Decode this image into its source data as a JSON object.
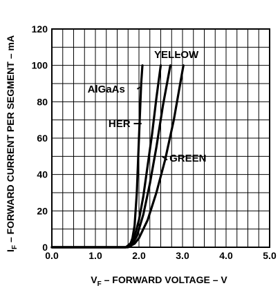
{
  "chart_data": {
    "type": "line",
    "title": "",
    "xlabel": {
      "main": "V",
      "sub": "F",
      "rest": " – FORWARD VOLTAGE – V"
    },
    "ylabel": {
      "main": "I",
      "sub": "F",
      "rest": " – FORWARD CURRENT PER SEGMENT – mA"
    },
    "xlim": [
      0,
      5
    ],
    "ylim": [
      0,
      120
    ],
    "x_ticks": [
      {
        "v": 0,
        "label": "0.0"
      },
      {
        "v": 1,
        "label": "1.0"
      },
      {
        "v": 2,
        "label": "2.0"
      },
      {
        "v": 3,
        "label": "3.0"
      },
      {
        "v": 4,
        "label": "4.0"
      },
      {
        "v": 5,
        "label": "5.0"
      }
    ],
    "y_ticks": [
      {
        "v": 0,
        "label": "0"
      },
      {
        "v": 20,
        "label": "20"
      },
      {
        "v": 40,
        "label": "40"
      },
      {
        "v": 60,
        "label": "60"
      },
      {
        "v": 80,
        "label": "80"
      },
      {
        "v": 100,
        "label": "100"
      },
      {
        "v": 120,
        "label": "120"
      }
    ],
    "x_grid_step": 0.25,
    "y_grid_step": 10,
    "grid": true,
    "legend": "none",
    "series": [
      {
        "name": "AlGaAs",
        "color": "#000000",
        "points": [
          [
            0,
            0
          ],
          [
            1.7,
            0
          ],
          [
            1.8,
            1.5
          ],
          [
            1.85,
            5
          ],
          [
            1.9,
            12
          ],
          [
            1.95,
            30
          ],
          [
            2.0,
            60
          ],
          [
            2.05,
            90
          ],
          [
            2.08,
            100
          ]
        ]
      },
      {
        "name": "HER",
        "color": "#000000",
        "points": [
          [
            0,
            0
          ],
          [
            1.7,
            0
          ],
          [
            1.8,
            2
          ],
          [
            1.9,
            6
          ],
          [
            2.0,
            15
          ],
          [
            2.1,
            28
          ],
          [
            2.2,
            45
          ],
          [
            2.3,
            62
          ],
          [
            2.4,
            82
          ],
          [
            2.5,
            100
          ]
        ]
      },
      {
        "name": "YELLOW",
        "color": "#000000",
        "points": [
          [
            0,
            0
          ],
          [
            1.7,
            0
          ],
          [
            1.85,
            2
          ],
          [
            1.95,
            6
          ],
          [
            2.1,
            18
          ],
          [
            2.25,
            35
          ],
          [
            2.4,
            55
          ],
          [
            2.55,
            78
          ],
          [
            2.72,
            100
          ]
        ]
      },
      {
        "name": "GREEN",
        "color": "#000000",
        "points": [
          [
            0,
            0
          ],
          [
            1.75,
            0
          ],
          [
            1.9,
            2
          ],
          [
            2.0,
            5
          ],
          [
            2.2,
            15
          ],
          [
            2.4,
            30
          ],
          [
            2.6,
            48
          ],
          [
            2.8,
            70
          ],
          [
            3.02,
            100
          ]
        ]
      }
    ],
    "annotations": [
      {
        "text": "YELLOW",
        "x": 2.35,
        "y": 106,
        "line": [
          [
            2.85,
            106
          ],
          [
            2.95,
            106
          ]
        ]
      },
      {
        "text": "AlGaAs",
        "x": 0.82,
        "y": 87,
        "line": [
          [
            1.96,
            87
          ],
          [
            2.02,
            88
          ]
        ]
      },
      {
        "text": "HER",
        "x": 1.3,
        "y": 68,
        "line": [
          [
            1.88,
            68
          ],
          [
            2.06,
            68
          ]
        ]
      },
      {
        "text": "GREEN",
        "x": 2.7,
        "y": 49,
        "line": [
          [
            2.53,
            50
          ],
          [
            2.65,
            48
          ]
        ]
      }
    ]
  }
}
